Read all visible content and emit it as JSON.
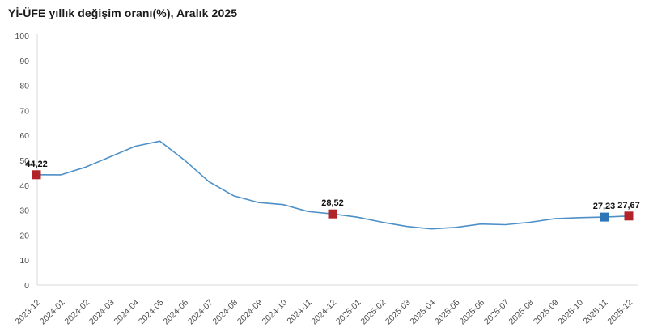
{
  "chart_data": {
    "type": "line",
    "title": "Yİ-ÜFE yıllık değişim oranı(%), Aralık 2025",
    "xlabel": "",
    "ylabel": "",
    "ylim": [
      0,
      100
    ],
    "ytick_step": 10,
    "grid": false,
    "legend_position": "none",
    "categories": [
      "2023-12",
      "2024-01",
      "2024-02",
      "2024-03",
      "2024-04",
      "2024-05",
      "2024-06",
      "2024-07",
      "2024-08",
      "2024-09",
      "2024-10",
      "2024-11",
      "2024-12",
      "2025-01",
      "2025-02",
      "2025-03",
      "2025-04",
      "2025-05",
      "2025-06",
      "2025-07",
      "2025-08",
      "2025-09",
      "2025-10",
      "2025-11",
      "2025-12"
    ],
    "series": [
      {
        "name": "Yİ-ÜFE yıllık değişim oranı (%)",
        "values": [
          44.22,
          44.2,
          47.29,
          51.47,
          55.66,
          57.68,
          50.09,
          41.37,
          35.75,
          33.09,
          32.24,
          29.47,
          28.52,
          27.2,
          25.21,
          23.5,
          22.5,
          23.13,
          24.45,
          24.19,
          25.16,
          26.59,
          27.0,
          27.23,
          27.67
        ]
      }
    ],
    "annotated_points": [
      {
        "category": "2023-12",
        "value": 44.22,
        "label": "44,22",
        "marker_color": "#b02328"
      },
      {
        "category": "2024-12",
        "value": 28.52,
        "label": "28,52",
        "marker_color": "#b02328"
      },
      {
        "category": "2025-11",
        "value": 27.23,
        "label": "27,23",
        "marker_color": "#2e75b6"
      },
      {
        "category": "2025-12",
        "value": 27.67,
        "label": "27,67",
        "marker_color": "#b02328"
      }
    ],
    "colors": {
      "line": "#4d90c7",
      "axis": "#d9d9d9",
      "tick_label": "#4d4d4d",
      "title_text": "#1a1a1a",
      "marker_red": "#b02328",
      "marker_blue": "#2e75b6"
    }
  }
}
